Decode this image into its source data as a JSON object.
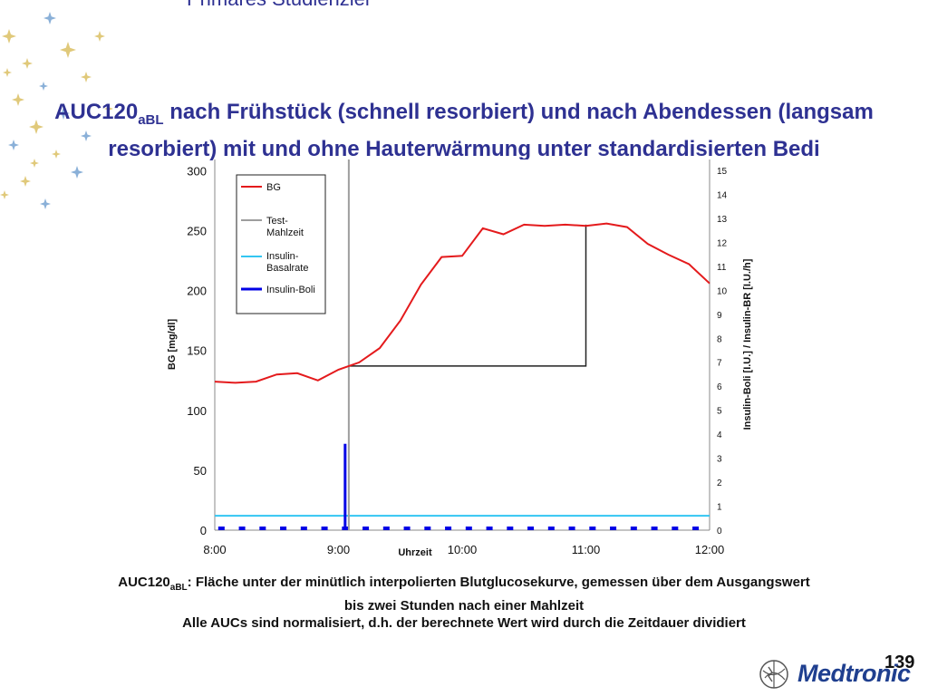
{
  "slide_title": "Primäres Studienziel",
  "heading": {
    "prefix": "AUC120",
    "subscript": "aBL",
    "rest": " nach Frühstück (schnell resorbiert) und nach Abendessen (langsam resorbiert) mit und ohne Hauterwärmung unter standardisierten Bedi"
  },
  "chart_data": {
    "type": "line",
    "x_range": [
      "8:00",
      "12:00"
    ],
    "x_ticks": [
      "8:00",
      "9:00",
      "10:00",
      "11:00",
      "12:00"
    ],
    "xlabel": "Uhrzeit",
    "ylabel": "BG [mg/dl]",
    "ylim": [
      0,
      320
    ],
    "y_ticks": [
      0,
      50,
      100,
      150,
      200,
      250,
      300
    ],
    "y2label": "Insulin-Boli [I.U.] / Insulin-BR [I.U./h]",
    "y2lim": [
      0,
      15
    ],
    "y2_ticks": [
      0,
      1,
      2,
      3,
      4,
      5,
      6,
      7,
      8,
      9,
      10,
      11,
      12,
      13,
      14,
      15
    ],
    "legend_position": "top-left",
    "series": [
      {
        "name": "BG",
        "color": "#e41a1c",
        "axis": "left",
        "x": [
          "8:00",
          "8:10",
          "8:20",
          "8:30",
          "8:40",
          "8:50",
          "9:00",
          "9:10",
          "9:20",
          "9:30",
          "9:40",
          "9:50",
          "10:00",
          "10:10",
          "10:20",
          "10:30",
          "10:40",
          "10:50",
          "11:00",
          "11:10",
          "11:20",
          "11:30",
          "11:40",
          "11:50",
          "12:00"
        ],
        "values": [
          124,
          123,
          124,
          130,
          131,
          125,
          134,
          140,
          152,
          175,
          205,
          228,
          229,
          252,
          247,
          255,
          254,
          255,
          254,
          256,
          253,
          239,
          230,
          222,
          206
        ]
      },
      {
        "name": "Test-Mahlzeit",
        "color": "#9e9e9e",
        "axis": "left",
        "x": [
          "9:05"
        ],
        "type": "vertical-line"
      },
      {
        "name": "Insulin-Basalrate",
        "color": "#33c6f2",
        "axis": "right",
        "x": [
          "8:00",
          "12:00"
        ],
        "values": [
          0.6,
          0.6
        ]
      },
      {
        "name": "Insulin-Boli",
        "color": "#0000e6",
        "axis": "right",
        "x": [
          "8:03",
          "8:13",
          "8:23",
          "8:33",
          "8:43",
          "8:53",
          "9:03",
          "9:13",
          "9:23",
          "9:33",
          "9:43",
          "9:53",
          "10:03",
          "10:13",
          "10:23",
          "10:33",
          "10:43",
          "10:53",
          "11:03",
          "11:13",
          "11:23",
          "11:33",
          "11:43",
          "11:53",
          "9:03"
        ],
        "values": [
          0.1,
          0.1,
          0.1,
          0.1,
          0.1,
          0.1,
          0.1,
          0.1,
          0.1,
          0.1,
          0.1,
          0.1,
          0.1,
          0.1,
          0.1,
          0.1,
          0.1,
          0.1,
          0.1,
          0.1,
          0.1,
          0.1,
          0.1,
          0.1,
          3.6
        ]
      }
    ],
    "auc_region": {
      "x": [
        "9:05",
        "11:00"
      ],
      "baseline": 137,
      "end_value": 255
    }
  },
  "footnote": {
    "prefix": "AUC120",
    "subscript": "aBL",
    "line1_rest": ": Fläche unter der minütlich interpolierten Blutglucosekurve, gemessen über dem Ausgangswert",
    "line1_cont": "bis zwei Stunden nach einer Mahlzeit",
    "line2": "Alle AUCs sind normalisiert, d.h. der berechnete Wert wird durch die Zeitdauer dividiert"
  },
  "page_number": "139",
  "logo_text": "Medtronic",
  "colors": {
    "title_blue": "#2e3192",
    "bg_red": "#e41a1c",
    "meal_gray": "#9e9e9e",
    "basal_cyan": "#33c6f2",
    "bolus_blue": "#0000e6",
    "logo_blue": "#1f3f8f"
  }
}
